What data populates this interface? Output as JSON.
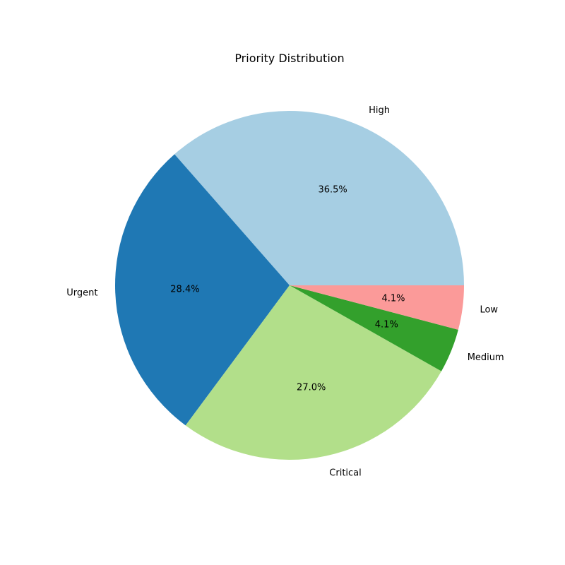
{
  "chart_data": {
    "type": "pie",
    "title": "Priority Distribution",
    "start_angle_deg": 0,
    "direction": "counterclockwise",
    "slices": [
      {
        "label": "High",
        "value": 36.5,
        "percent_label": "36.5%",
        "color": "#a6cee3"
      },
      {
        "label": "Urgent",
        "value": 28.4,
        "percent_label": "28.4%",
        "color": "#1f78b4"
      },
      {
        "label": "Critical",
        "value": 27.0,
        "percent_label": "27.0%",
        "color": "#b2df8a"
      },
      {
        "label": "Medium",
        "value": 4.1,
        "percent_label": "4.1%",
        "color": "#33a02c"
      },
      {
        "label": "Low",
        "value": 4.1,
        "percent_label": "4.1%",
        "color": "#fb9a99"
      }
    ]
  }
}
